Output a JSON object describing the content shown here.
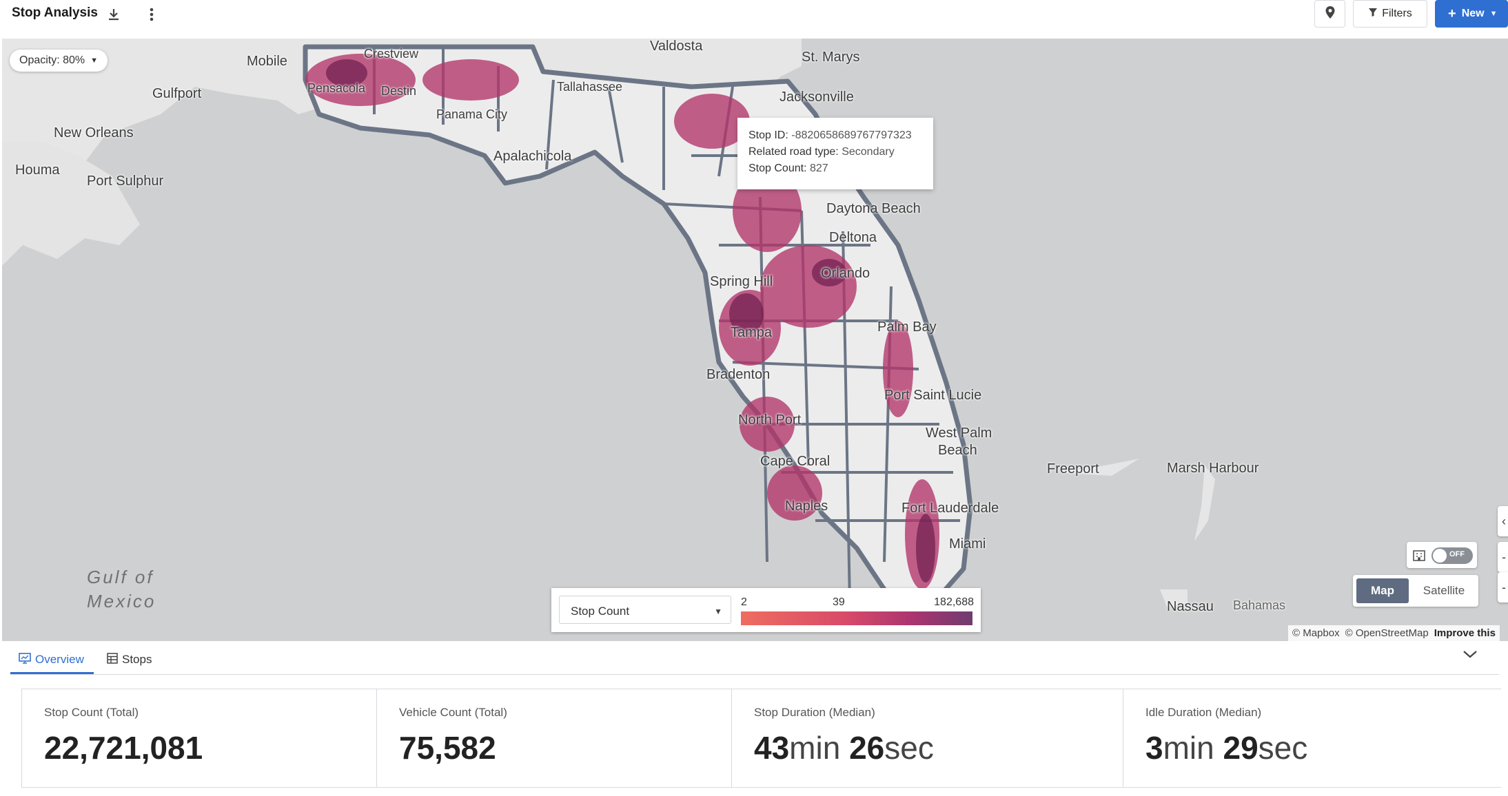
{
  "header": {
    "title": "Stop Analysis",
    "filters_label": "Filters",
    "new_label": "New"
  },
  "map": {
    "opacity_label": "Opacity: 80%",
    "cities": {
      "valdosta": "Valdosta",
      "st_marys": "St. Marys",
      "mobile": "Mobile",
      "crestview": "Crestview",
      "gulfport": "Gulfport",
      "pensacola": "Pensacola",
      "destin": "Destin",
      "tallahassee": "Tallahassee",
      "jacksonville": "Jacksonville",
      "panama_city": "Panama City",
      "new_orleans": "New Orleans",
      "apalachicola": "Apalachicola",
      "houma": "Houma",
      "port_sulphur": "Port Sulphur",
      "daytona_beach": "Daytona Beach",
      "deltona": "Deltona",
      "spring_hill": "Spring Hill",
      "orlando": "Orlando",
      "tampa": "Tampa",
      "palm_bay": "Palm Bay",
      "bradenton": "Bradenton",
      "port_saint_lucie": "Port Saint Lucie",
      "north_port": "North Port",
      "west_palm": "West Palm",
      "beach": "Beach",
      "freeport": "Freeport",
      "marsh_harbour": "Marsh Harbour",
      "cape_coral": "Cape Coral",
      "naples": "Naples",
      "fort_lauderdale": "Fort Lauderdale",
      "miami": "Miami",
      "nassau": "Nassau",
      "bahamas": "Bahamas"
    },
    "gulf_line1": "Gulf of",
    "gulf_line2": "Mexico",
    "tooltip": {
      "stop_id_label": "Stop ID:",
      "stop_id_value": "-8820658689767797323",
      "road_type_label": "Related road type:",
      "road_type_value": "Secondary",
      "stop_count_label": "Stop Count:",
      "stop_count_value": "827"
    },
    "legend": {
      "metric": "Stop Count",
      "min": "2",
      "mid": "39",
      "max": "182,688"
    },
    "toggle_label": "OFF",
    "map_button": "Map",
    "satellite_button": "Satellite",
    "attribution_mapbox": "© Mapbox",
    "attribution_osm": "© OpenStreetMap",
    "improve": "Improve this"
  },
  "tabs": {
    "overview": "Overview",
    "stops": "Stops"
  },
  "kpis": [
    {
      "label": "Stop Count (Total)",
      "value": "22,721,081"
    },
    {
      "label": "Vehicle Count (Total)",
      "value": "75,582"
    },
    {
      "label": "Stop Duration (Median)",
      "num1": "43",
      "unit1": "min",
      "num2": "26",
      "unit2": "sec"
    },
    {
      "label": "Idle Duration (Median)",
      "num1": "3",
      "unit1": "min",
      "num2": "29",
      "unit2": "sec"
    }
  ],
  "colors": {
    "accent": "#2f6fd1",
    "choropleth_low": "#ee6d5f",
    "choropleth_high": "#6f3c6f",
    "county_border": "#6b7585"
  }
}
